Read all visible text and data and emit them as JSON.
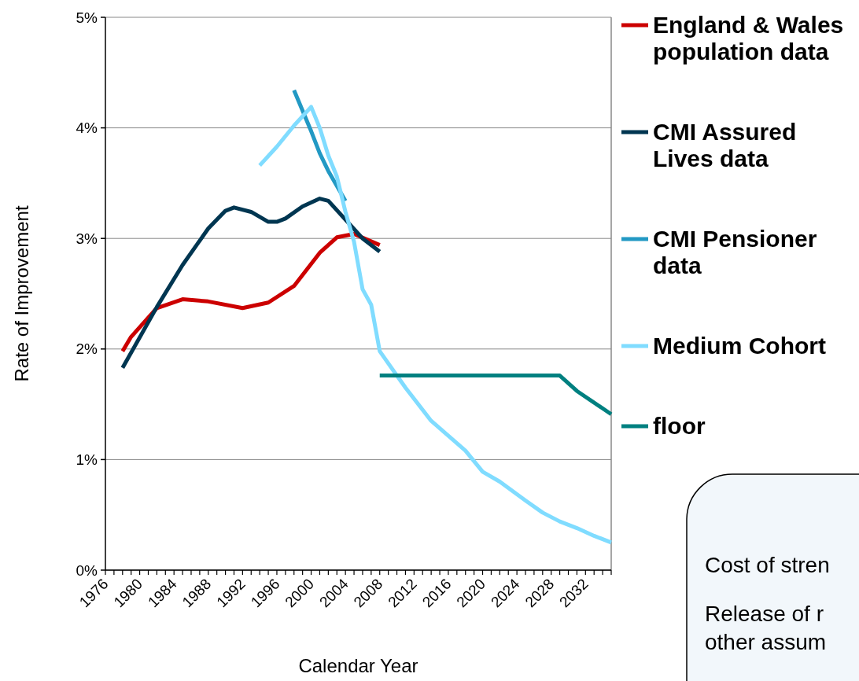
{
  "chart_data": {
    "type": "line",
    "xlabel": "Calendar Year",
    "ylabel": "Rate of Improvement",
    "xlim": [
      1976,
      2035
    ],
    "ylim": [
      0,
      5
    ],
    "xticks": [
      1976,
      {
        "value": 1977,
        "label": null
      },
      {
        "value": 1978,
        "label": null
      },
      {
        "value": 1979,
        "label": null
      },
      1980,
      {
        "value": 1981,
        "label": null
      },
      {
        "value": 1982,
        "label": null
      },
      {
        "value": 1983,
        "label": null
      },
      1984,
      {
        "value": 1985,
        "label": null
      },
      {
        "value": 1986,
        "label": null
      },
      {
        "value": 1987,
        "label": null
      },
      1988,
      {
        "value": 1989,
        "label": null
      },
      {
        "value": 1990,
        "label": null
      },
      {
        "value": 1991,
        "label": null
      },
      1992,
      {
        "value": 1993,
        "label": null
      },
      {
        "value": 1994,
        "label": null
      },
      {
        "value": 1995,
        "label": null
      },
      1996,
      {
        "value": 1997,
        "label": null
      },
      {
        "value": 1998,
        "label": null
      },
      {
        "value": 1999,
        "label": null
      },
      2000,
      {
        "value": 2001,
        "label": null
      },
      {
        "value": 2002,
        "label": null
      },
      {
        "value": 2003,
        "label": null
      },
      2004,
      {
        "value": 2005,
        "label": null
      },
      {
        "value": 2006,
        "label": null
      },
      {
        "value": 2007,
        "label": null
      },
      2008,
      {
        "value": 2009,
        "label": null
      },
      {
        "value": 2010,
        "label": null
      },
      {
        "value": 2011,
        "label": null
      },
      2012,
      {
        "value": 2013,
        "label": null
      },
      {
        "value": 2014,
        "label": null
      },
      {
        "value": 2015,
        "label": null
      },
      2016,
      {
        "value": 2017,
        "label": null
      },
      {
        "value": 2018,
        "label": null
      },
      {
        "value": 2019,
        "label": null
      },
      2020,
      {
        "value": 2021,
        "label": null
      },
      {
        "value": 2022,
        "label": null
      },
      {
        "value": 2023,
        "label": null
      },
      2024,
      {
        "value": 2025,
        "label": null
      },
      {
        "value": 2026,
        "label": null
      },
      {
        "value": 2027,
        "label": null
      },
      2028,
      {
        "value": 2029,
        "label": null
      },
      {
        "value": 2030,
        "label": null
      },
      {
        "value": 2031,
        "label": null
      },
      2032,
      {
        "value": 2033,
        "label": null
      },
      {
        "value": 2034,
        "label": null
      },
      {
        "value": 2035,
        "label": null
      }
    ],
    "yticks": [
      {
        "value": 0,
        "label": "0%"
      },
      {
        "value": 1,
        "label": "1%"
      },
      {
        "value": 2,
        "label": "2%"
      },
      {
        "value": 3,
        "label": "3%"
      },
      {
        "value": 4,
        "label": "4%"
      },
      {
        "value": 5,
        "label": "5%"
      }
    ],
    "grid": "y",
    "legend": "right",
    "marker": "none",
    "line_style": "solid",
    "series": [
      {
        "name": "England & Wales population data",
        "color": "#cc0000",
        "x": [
          1978,
          1979,
          1982,
          1985,
          1988,
          1992,
          1995,
          1998,
          2001,
          2003,
          2005,
          2008
        ],
        "values": [
          1.98,
          2.11,
          2.37,
          2.45,
          2.43,
          2.37,
          2.42,
          2.57,
          2.87,
          3.01,
          3.04,
          2.94
        ]
      },
      {
        "name": "CMI Assured Lives data",
        "color": "#003651",
        "x": [
          1978,
          1982,
          1985,
          1988,
          1990,
          1991,
          1993,
          1995,
          1996,
          1997,
          1999,
          2001,
          2002,
          2006,
          2008
        ],
        "values": [
          1.83,
          2.38,
          2.76,
          3.09,
          3.25,
          3.28,
          3.24,
          3.15,
          3.15,
          3.18,
          3.29,
          3.36,
          3.34,
          3.0,
          2.88
        ]
      },
      {
        "name": "CMI Pensioner data",
        "color": "#2299c4",
        "x": [
          1998,
          2000,
          2001,
          2002,
          2004
        ],
        "values": [
          4.34,
          3.97,
          3.77,
          3.61,
          3.34
        ]
      },
      {
        "name": "Medium Cohort",
        "color": "#80dcff",
        "x": [
          1994,
          1996,
          1998,
          2000,
          2001,
          2002,
          2003,
          2004,
          2005,
          2006,
          2007,
          2008,
          2011,
          2014,
          2018,
          2020,
          2022,
          2025,
          2027,
          2029,
          2031,
          2033,
          2035
        ],
        "values": [
          3.66,
          3.83,
          4.02,
          4.19,
          4.0,
          3.75,
          3.56,
          3.24,
          2.97,
          2.54,
          2.4,
          1.98,
          1.65,
          1.35,
          1.08,
          0.89,
          0.8,
          0.63,
          0.52,
          0.44,
          0.38,
          0.31,
          0.25
        ]
      },
      {
        "name": "floor",
        "color": "#008080",
        "x": [
          2008,
          2029,
          2031,
          2035
        ],
        "values": [
          1.76,
          1.76,
          1.62,
          1.41
        ]
      }
    ],
    "annotations": [
      "Cost of stren",
      "Release of r",
      "other assum"
    ]
  }
}
